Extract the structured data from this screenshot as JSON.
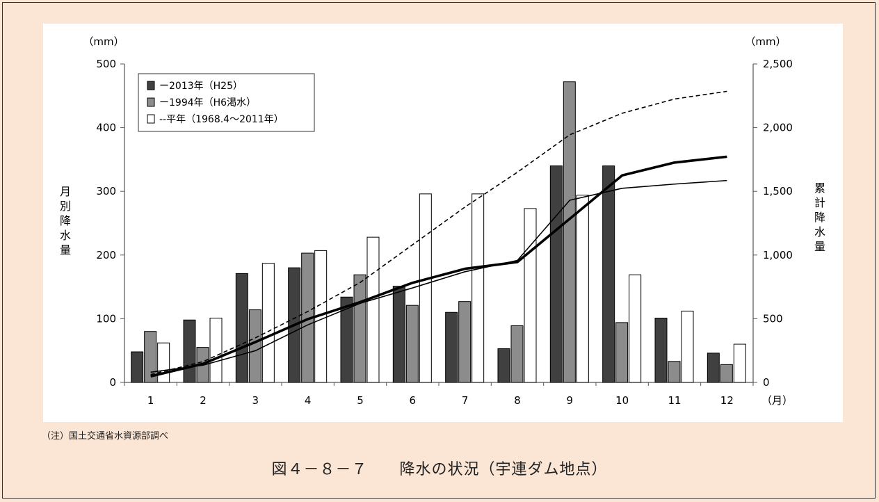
{
  "note": "（注）国土交通省水資源部調べ",
  "caption": "図４－８－７　　降水の状況（宇連ダム地点）",
  "chart_data": {
    "type": "bar",
    "categories": [
      "1",
      "2",
      "3",
      "4",
      "5",
      "6",
      "7",
      "8",
      "9",
      "10",
      "11",
      "12"
    ],
    "x_unit": "（月）",
    "y_left": {
      "label": "月別降水量",
      "unit": "（mm）",
      "lim": [
        0,
        500
      ],
      "ticks": [
        0,
        100,
        200,
        300,
        400,
        500
      ]
    },
    "y_right": {
      "label": "累計降水量",
      "unit": "（mm）",
      "lim": [
        0,
        2500
      ],
      "ticks": [
        "0",
        "500",
        "1,000",
        "1,500",
        "2,000",
        "2,500"
      ]
    },
    "grid": false,
    "legend_position": "top-left",
    "legend": [
      "ー2013年（H25）",
      "ー1994年（H6渇水）",
      "--平年（1968.4～2011年）"
    ],
    "series": [
      {
        "name": "2013年（H25）",
        "type": "bar",
        "axis": "left",
        "color": "#404040",
        "values": [
          48,
          98,
          171,
          180,
          134,
          151,
          110,
          53,
          340,
          340,
          101,
          46
        ]
      },
      {
        "name": "1994年（H6渇水）",
        "type": "bar",
        "axis": "left",
        "color": "#8c8c8c",
        "values": [
          80,
          55,
          114,
          203,
          169,
          121,
          127,
          89,
          472,
          94,
          33,
          28
        ]
      },
      {
        "name": "平年（1968.4～2011年）",
        "type": "bar",
        "axis": "left",
        "color": "#ffffff",
        "values": [
          62,
          101,
          187,
          207,
          228,
          296,
          296,
          273,
          294,
          169,
          112,
          60
        ]
      },
      {
        "name": "2013年（H25）",
        "type": "line",
        "axis": "right",
        "style": "thick",
        "values": [
          48,
          146,
          317,
          497,
          631,
          782,
          892,
          945,
          1285,
          1625,
          1726,
          1772
        ]
      },
      {
        "name": "1994年（H6渇水）",
        "type": "line",
        "axis": "right",
        "style": "thin",
        "values": [
          80,
          135,
          249,
          452,
          621,
          742,
          869,
          958,
          1430,
          1524,
          1557,
          1585
        ]
      },
      {
        "name": "平年（1968.4～2011年）",
        "type": "line",
        "axis": "right",
        "style": "dashed",
        "values": [
          62,
          163,
          350,
          557,
          785,
          1081,
          1377,
          1650,
          1944,
          2113,
          2225,
          2285
        ]
      }
    ]
  }
}
